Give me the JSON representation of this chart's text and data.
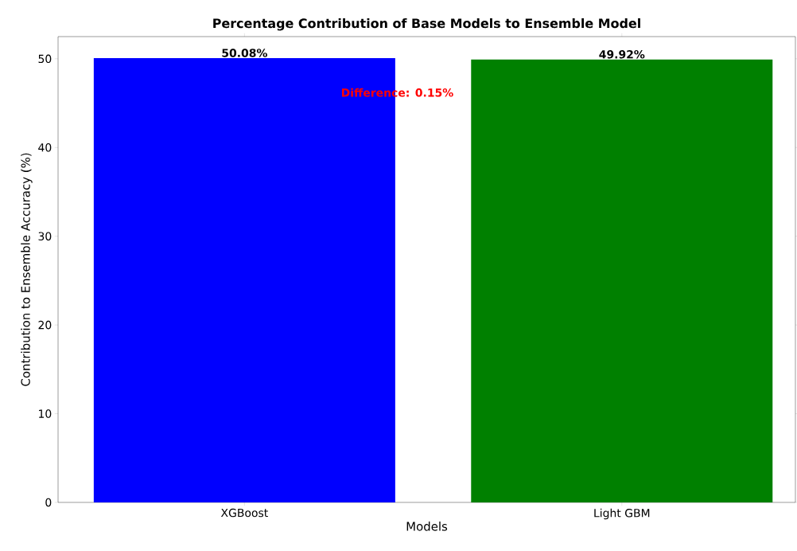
{
  "chart_data": {
    "type": "bar",
    "title": "Percentage Contribution of Base Models to Ensemble Model",
    "xlabel": "Models",
    "ylabel": "Contribution to Ensemble Accuracy (%)",
    "categories": [
      "XGBoost",
      "Light GBM"
    ],
    "values": [
      50.08,
      49.92
    ],
    "colors": [
      "#0000ff",
      "#008000"
    ],
    "value_labels": [
      "50.08%",
      "49.92%"
    ],
    "annotations": [
      "Difference: 0.15%"
    ],
    "ylim": [
      0,
      52.5
    ],
    "yticks": [
      0,
      10,
      20,
      30,
      40,
      50
    ],
    "grid": false
  }
}
